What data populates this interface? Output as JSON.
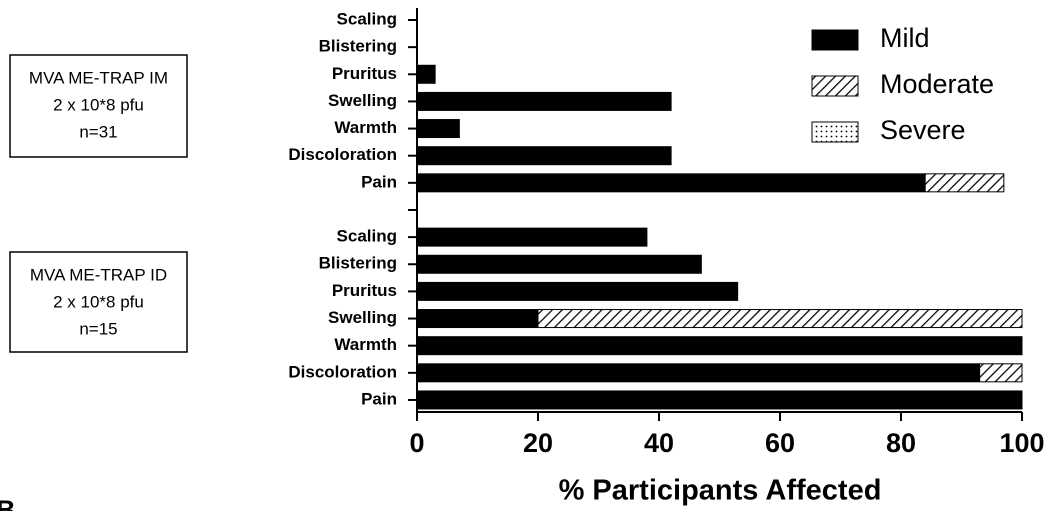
{
  "chart_data": {
    "type": "stacked_barh",
    "xlabel": "% Participants Affected",
    "panel_label": "B",
    "groups": [
      {
        "lines": [
          "MVA ME-TRAP IM",
          "2 x 10*8 pfu",
          "n=31"
        ]
      },
      {
        "lines": [
          "MVA ME-TRAP ID",
          "2 x 10*8 pfu",
          "n=15"
        ]
      }
    ],
    "categories": [
      "Scaling",
      "Blistering",
      "Pruritus",
      "Swelling",
      "Warmth",
      "Discoloration",
      "Pain",
      null,
      "Scaling",
      "Blistering",
      "Pruritus",
      "Swelling",
      "Warmth",
      "Discoloration",
      "Pain"
    ],
    "series": [
      {
        "name": "Mild",
        "color": "#000000",
        "fill": "solid",
        "values": [
          0,
          0,
          3,
          42,
          7,
          42,
          84,
          null,
          38,
          47,
          53,
          20,
          100,
          93,
          100
        ]
      },
      {
        "name": "Moderate",
        "color": "#000000",
        "fill": "hatch",
        "values": [
          0,
          0,
          0,
          0,
          0,
          0,
          13,
          null,
          0,
          0,
          0,
          80,
          0,
          7,
          0
        ]
      },
      {
        "name": "Severe",
        "color": "#000000",
        "fill": "dots",
        "values": [
          0,
          0,
          0,
          0,
          0,
          0,
          0,
          null,
          0,
          0,
          0,
          0,
          0,
          0,
          0
        ]
      }
    ],
    "xlim": [
      0,
      100
    ],
    "xticks": [
      0,
      20,
      40,
      60,
      80,
      100
    ],
    "legend": "upper right"
  }
}
